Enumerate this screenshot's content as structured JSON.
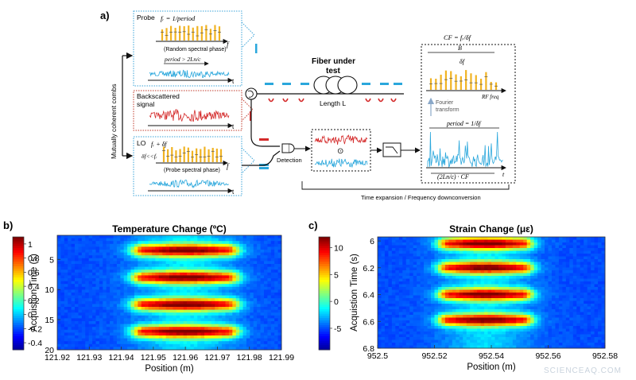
{
  "panel_a": {
    "label": "a)",
    "combs_axis_label": "Mutually coherent combs",
    "probe": {
      "title": "Probe",
      "fr_eq": "fᵣ = 1/period",
      "f_axis": "f",
      "phase_note": "(Random spectral phase)",
      "period_note": "period > 2Ln/c",
      "t_axis": "t"
    },
    "backscattered": {
      "title_line1": "Backscattered",
      "title_line2": "signal",
      "t_axis": "t"
    },
    "lo": {
      "title": "LO",
      "fr_plus": "fᵣ + δf",
      "delta_note": "δf<<fᵣ",
      "f_axis": "f",
      "phase_note": "(Probe spectral phase)",
      "t_axis": "t"
    },
    "fiber": {
      "title_line1": "Fiber under",
      "title_line2": "test",
      "length": "Length L"
    },
    "detection": "Detection",
    "multiply_symbol": "⊙",
    "output": {
      "cf_eq": "CF = fᵣ/δf",
      "b_label": "B",
      "df_label": "δf",
      "rf_axis": "RF freq",
      "fourier_line1": "Fourier",
      "fourier_line2": "transform",
      "period_eq": "period = 1/δf",
      "bottom_eq": "(2Ln/c) · CF",
      "t_axis": "t"
    },
    "time_expansion": "Time expansion / Frequency downconversion"
  },
  "charts": [
    {
      "label": "b)",
      "type": "heatmap",
      "title": "Temperature Change (ºC)",
      "xlabel": "Position (m)",
      "ylabel": "Acquistion Time (s)",
      "x_ticks": [
        "121.92",
        "121.93",
        "121.94",
        "121.95",
        "121.96",
        "121.97",
        "121.98",
        "121.99"
      ],
      "y_ticks": [
        "5",
        "10",
        "15",
        "20"
      ],
      "colorbar_ticks": [
        "1",
        "0.8",
        "0.6",
        "0.4",
        "0.2",
        "0",
        "-0.2",
        "-0.4"
      ],
      "xlim": [
        121.92,
        121.99
      ],
      "ylim": [
        20,
        1
      ],
      "clim": [
        -0.5,
        1.1
      ],
      "hot_band_x": [
        121.947,
        121.973
      ],
      "hot_band_centers_t": [
        3.5,
        8.0,
        12.5,
        17.0
      ]
    },
    {
      "label": "c)",
      "type": "heatmap",
      "title": "Strain Change (με)",
      "xlabel": "Position (m)",
      "ylabel": "Acquistion Time (s)",
      "x_ticks": [
        "952.5",
        "952.52",
        "952.54",
        "952.56",
        "952.58"
      ],
      "y_ticks": [
        "6",
        "6.2",
        "6.4",
        "6.6",
        "6.8"
      ],
      "colorbar_ticks": [
        "10",
        "5",
        "0",
        "-5"
      ],
      "xlim": [
        952.5,
        952.58
      ],
      "ylim": [
        6.8,
        5.97
      ],
      "clim": [
        -9,
        12
      ],
      "hot_band_x": [
        952.525,
        952.551
      ],
      "hot_band_centers_t": [
        6.02,
        6.2,
        6.4,
        6.59
      ]
    }
  ],
  "watermark": "SCIENCEAQ.COM",
  "colors": {
    "yellow": "#f0b323",
    "blue": "#2aa7dc",
    "red": "#d42a2a",
    "dotted_blue": "#3aa3d8",
    "dotted_red": "#c0392b"
  }
}
